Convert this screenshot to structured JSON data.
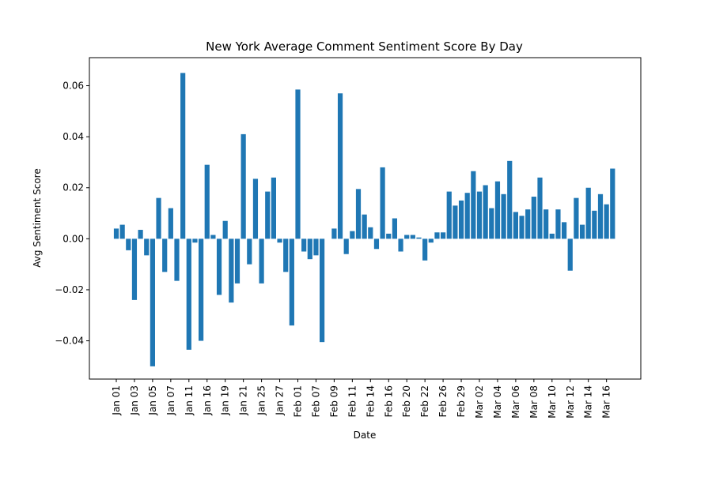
{
  "chart_data": {
    "type": "bar",
    "title": "New York Average Comment Sentiment Score By Day",
    "xlabel": "Date",
    "ylabel": "Avg Sentiment Score",
    "ylim": [
      -0.055,
      0.071
    ],
    "yticks": [
      -0.04,
      -0.02,
      0.0,
      0.02,
      0.04,
      0.06
    ],
    "ytick_labels": [
      "−0.04",
      "−0.02",
      "0.00",
      "0.02",
      "0.04",
      "0.06"
    ],
    "xticks": [
      {
        "index": 0,
        "label": "Jan 01"
      },
      {
        "index": 3,
        "label": "Jan 03"
      },
      {
        "index": 6,
        "label": "Jan 05"
      },
      {
        "index": 9,
        "label": "Jan 07"
      },
      {
        "index": 12,
        "label": "Jan 11"
      },
      {
        "index": 15,
        "label": "Jan 16"
      },
      {
        "index": 18,
        "label": "Jan 19"
      },
      {
        "index": 21,
        "label": "Jan 21"
      },
      {
        "index": 24,
        "label": "Jan 25"
      },
      {
        "index": 27,
        "label": "Jan 27"
      },
      {
        "index": 30,
        "label": "Feb 01"
      },
      {
        "index": 33,
        "label": "Feb 07"
      },
      {
        "index": 36,
        "label": "Feb 09"
      },
      {
        "index": 39,
        "label": "Feb 11"
      },
      {
        "index": 42,
        "label": "Feb 14"
      },
      {
        "index": 45,
        "label": "Feb 16"
      },
      {
        "index": 48,
        "label": "Feb 20"
      },
      {
        "index": 51,
        "label": "Feb 22"
      },
      {
        "index": 54,
        "label": "Feb 26"
      },
      {
        "index": 57,
        "label": "Feb 29"
      },
      {
        "index": 60,
        "label": "Mar 02"
      },
      {
        "index": 63,
        "label": "Mar 04"
      },
      {
        "index": 66,
        "label": "Mar 06"
      },
      {
        "index": 69,
        "label": "Mar 08"
      },
      {
        "index": 72,
        "label": "Mar 10"
      },
      {
        "index": 75,
        "label": "Mar 12"
      },
      {
        "index": 78,
        "label": "Mar 14"
      },
      {
        "index": 81,
        "label": "Mar 16"
      }
    ],
    "values": [
      0.004,
      0.0055,
      -0.0045,
      -0.024,
      0.0035,
      -0.0065,
      -0.05,
      0.016,
      -0.013,
      0.012,
      -0.0165,
      0.065,
      -0.0435,
      -0.0015,
      -0.04,
      0.029,
      0.0015,
      -0.022,
      0.007,
      -0.025,
      -0.0175,
      0.041,
      -0.01,
      0.0235,
      -0.0175,
      0.0185,
      0.024,
      -0.0015,
      -0.013,
      -0.034,
      0.0585,
      -0.005,
      -0.008,
      -0.0065,
      -0.0405,
      0.0,
      0.004,
      0.057,
      -0.006,
      0.003,
      0.0195,
      0.0095,
      0.0045,
      -0.004,
      0.028,
      0.002,
      0.008,
      -0.005,
      0.0015,
      0.0015,
      0.0005,
      -0.0085,
      -0.0015,
      0.0025,
      0.0025,
      0.0185,
      0.013,
      0.015,
      0.018,
      0.0265,
      0.0185,
      0.021,
      0.012,
      0.0225,
      0.0175,
      0.0305,
      0.0105,
      0.009,
      0.0115,
      0.0165,
      0.024,
      0.0115,
      0.002,
      0.0115,
      0.0065,
      -0.0125,
      0.016,
      0.0055,
      0.02,
      0.011,
      0.0175,
      0.0135,
      0.0275
    ],
    "bar_color": "#1f77b4",
    "grid": false,
    "legend": "none"
  }
}
